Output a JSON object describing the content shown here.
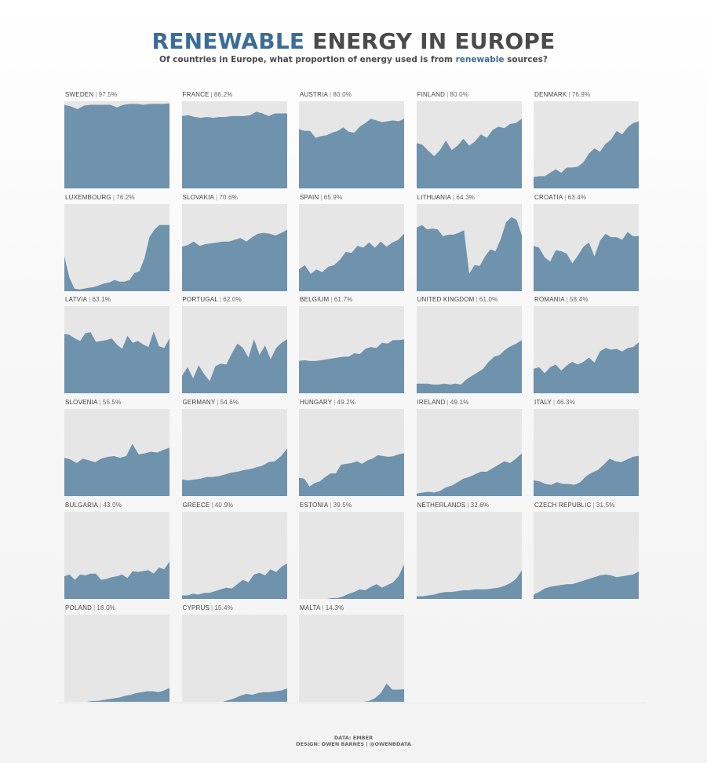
{
  "header": {
    "title_highlight": "RENEWABLE",
    "title_rest": "ENERGY IN EUROPE",
    "subtitle_pre": "Of countries in Europe, what proportion of energy used is from",
    "subtitle_highlight": "renewable",
    "subtitle_post": "sources?"
  },
  "footer": {
    "line1": "DATA: EMBER",
    "line2": "DESIGN: OWEN BARNES | @OWENBDATA"
  },
  "colors": {
    "area": "#6f92ad",
    "panel": "#e6e6e6",
    "accent": "#3d6d96"
  },
  "chart_data": {
    "type": "area",
    "layout": "small-multiples",
    "ylim": [
      0,
      100
    ],
    "countries": [
      {
        "name": "SWEDEN",
        "pct": "97.5%",
        "values": [
          96,
          94,
          91,
          95,
          96,
          96,
          96,
          96,
          93,
          96,
          97,
          97,
          96,
          97,
          97,
          97,
          97.5
        ]
      },
      {
        "name": "FRANCE",
        "pct": "86.2%",
        "values": [
          83,
          84,
          82,
          81,
          82,
          81,
          82,
          82,
          83,
          83,
          83,
          84,
          88,
          86,
          83,
          86,
          86,
          86.2
        ]
      },
      {
        "name": "AUSTRIA",
        "pct": "80.0%",
        "values": [
          68,
          66,
          66,
          58,
          60,
          61,
          64,
          66,
          70,
          65,
          64,
          71,
          75,
          80,
          78,
          76,
          77,
          78,
          77,
          80
        ]
      },
      {
        "name": "FINLAND",
        "pct": "80.0%",
        "values": [
          52,
          50,
          43,
          37,
          44,
          55,
          44,
          49,
          57,
          49,
          54,
          62,
          58,
          67,
          71,
          69,
          74,
          75,
          80
        ]
      },
      {
        "name": "DENMARK",
        "pct": "76.9%",
        "values": [
          13,
          14,
          14,
          18,
          22,
          18,
          24,
          24,
          25,
          30,
          40,
          46,
          42,
          51,
          56,
          66,
          62,
          70,
          75,
          76.9
        ]
      },
      {
        "name": "LUXEMBOURG",
        "pct": "76.2%",
        "values": [
          40,
          16,
          3,
          2,
          3,
          4,
          5,
          7,
          9,
          10,
          13,
          11,
          11,
          13,
          21,
          23,
          38,
          62,
          71,
          76,
          76,
          76
        ]
      },
      {
        "name": "SLOVAKIA",
        "pct": "70.6%",
        "values": [
          51,
          53,
          57,
          52,
          54,
          55,
          56,
          57,
          57,
          59,
          61,
          57,
          62,
          66,
          67,
          66,
          64,
          67,
          70.6
        ]
      },
      {
        "name": "SPAIN",
        "pct": "65.9%",
        "values": [
          25,
          30,
          20,
          25,
          22,
          28,
          30,
          36,
          45,
          44,
          52,
          50,
          56,
          50,
          57,
          51,
          56,
          59,
          65.9
        ]
      },
      {
        "name": "LITHUANIA",
        "pct": "64.3%",
        "values": [
          73,
          76,
          71,
          72,
          71,
          63,
          65,
          65,
          67,
          70,
          20,
          30,
          29,
          40,
          48,
          46,
          60,
          79,
          85,
          82,
          64
        ]
      },
      {
        "name": "CROATIA",
        "pct": "63.4%",
        "values": [
          52,
          50,
          39,
          34,
          47,
          46,
          43,
          32,
          41,
          51,
          56,
          40,
          58,
          66,
          62,
          62,
          59,
          68,
          63,
          63.4
        ]
      },
      {
        "name": "LATVIA",
        "pct": "63.1%",
        "values": [
          68,
          67,
          63,
          60,
          69,
          70,
          59,
          60,
          61,
          63,
          56,
          51,
          66,
          58,
          60,
          56,
          53,
          71,
          54,
          52,
          63.1
        ]
      },
      {
        "name": "PORTUGAL",
        "pct": "62.0%",
        "values": [
          20,
          30,
          17,
          32,
          22,
          14,
          31,
          34,
          33,
          46,
          57,
          52,
          41,
          62,
          44,
          55,
          39,
          52,
          58,
          62
        ]
      },
      {
        "name": "BELGIUM",
        "pct": "61.7%",
        "values": [
          37,
          38,
          37,
          37,
          38,
          39,
          40,
          41,
          42,
          42,
          46,
          45,
          51,
          53,
          52,
          58,
          57,
          61,
          61,
          61.7
        ]
      },
      {
        "name": "UNITED KINGDOM",
        "pct": "61.0%",
        "values": [
          11,
          11,
          11,
          10,
          10,
          11,
          10,
          11,
          10,
          16,
          20,
          24,
          28,
          36,
          42,
          44,
          50,
          54,
          57,
          61
        ]
      },
      {
        "name": "ROMANIA",
        "pct": "58.4%",
        "values": [
          28,
          30,
          23,
          30,
          33,
          26,
          32,
          36,
          33,
          36,
          41,
          35,
          48,
          52,
          50,
          51,
          48,
          52,
          53,
          58.4
        ]
      },
      {
        "name": "SLOVENIA",
        "pct": "55.5%",
        "values": [
          44,
          42,
          38,
          43,
          41,
          39,
          43,
          45,
          46,
          44,
          46,
          60,
          48,
          49,
          51,
          50,
          53,
          55.5
        ]
      },
      {
        "name": "GERMANY",
        "pct": "54.6%",
        "values": [
          19,
          18,
          19,
          20,
          22,
          22,
          23,
          25,
          27,
          28,
          30,
          31,
          33,
          35,
          39,
          40,
          46,
          54.6
        ]
      },
      {
        "name": "HUNGARY",
        "pct": "49.2%",
        "values": [
          21,
          20,
          11,
          15,
          17,
          22,
          26,
          26,
          36,
          37,
          38,
          40,
          37,
          41,
          43,
          47,
          46,
          45,
          46,
          48,
          49.2
        ]
      },
      {
        "name": "IRELAND",
        "pct": "49.1%",
        "values": [
          3,
          4,
          5,
          4,
          6,
          10,
          12,
          16,
          20,
          22,
          25,
          28,
          28,
          32,
          36,
          40,
          38,
          43,
          49.1
        ]
      },
      {
        "name": "ITALY",
        "pct": "46.3%",
        "values": [
          18,
          17,
          14,
          13,
          16,
          14,
          14,
          13,
          16,
          23,
          27,
          30,
          36,
          43,
          40,
          39,
          42,
          45,
          46.3
        ]
      },
      {
        "name": "BULGARIA",
        "pct": "43.0%",
        "values": [
          26,
          28,
          22,
          28,
          27,
          29,
          29,
          22,
          23,
          25,
          26,
          28,
          24,
          32,
          31,
          32,
          33,
          29,
          36,
          34,
          43
        ]
      },
      {
        "name": "GREECE",
        "pct": "40.9%",
        "values": [
          4,
          4,
          6,
          5,
          7,
          7,
          9,
          11,
          13,
          12,
          17,
          22,
          19,
          28,
          30,
          27,
          34,
          31,
          37,
          40.9
        ]
      },
      {
        "name": "ESTONIA",
        "pct": "39.5%",
        "values": [
          0,
          0,
          0,
          0,
          0,
          0,
          1,
          1,
          3,
          6,
          8,
          11,
          10,
          14,
          17,
          13,
          16,
          19,
          26,
          39.5
        ]
      },
      {
        "name": "NETHERLANDS",
        "pct": "32.6%",
        "values": [
          3,
          3,
          4,
          5,
          7,
          8,
          8,
          9,
          10,
          10,
          11,
          11,
          11,
          12,
          13,
          15,
          18,
          23,
          32.6
        ]
      },
      {
        "name": "CZECH REPUBLIC",
        "pct": "31.5%",
        "values": [
          5,
          8,
          12,
          14,
          15,
          16,
          17,
          17,
          19,
          21,
          23,
          25,
          27,
          28,
          27,
          25,
          26,
          27,
          28,
          31.5
        ]
      },
      {
        "name": "POLAND",
        "pct": "16.0%",
        "values": [
          0,
          0,
          0,
          0,
          0,
          1,
          1,
          2,
          3,
          4,
          5,
          7,
          8,
          10,
          11,
          12,
          12,
          11,
          13,
          16
        ]
      },
      {
        "name": "CYPRUS",
        "pct": "15.4%",
        "values": [
          0,
          0,
          0,
          0,
          0,
          0,
          0,
          0,
          2,
          4,
          7,
          9,
          8,
          10,
          11,
          11,
          12,
          13,
          15.4
        ]
      },
      {
        "name": "MALTA",
        "pct": "14.3%",
        "values": [
          0,
          0,
          0,
          0,
          0,
          0,
          0,
          0,
          0,
          0,
          0,
          0,
          1,
          4,
          10,
          21,
          14,
          14,
          14.3
        ]
      }
    ]
  }
}
